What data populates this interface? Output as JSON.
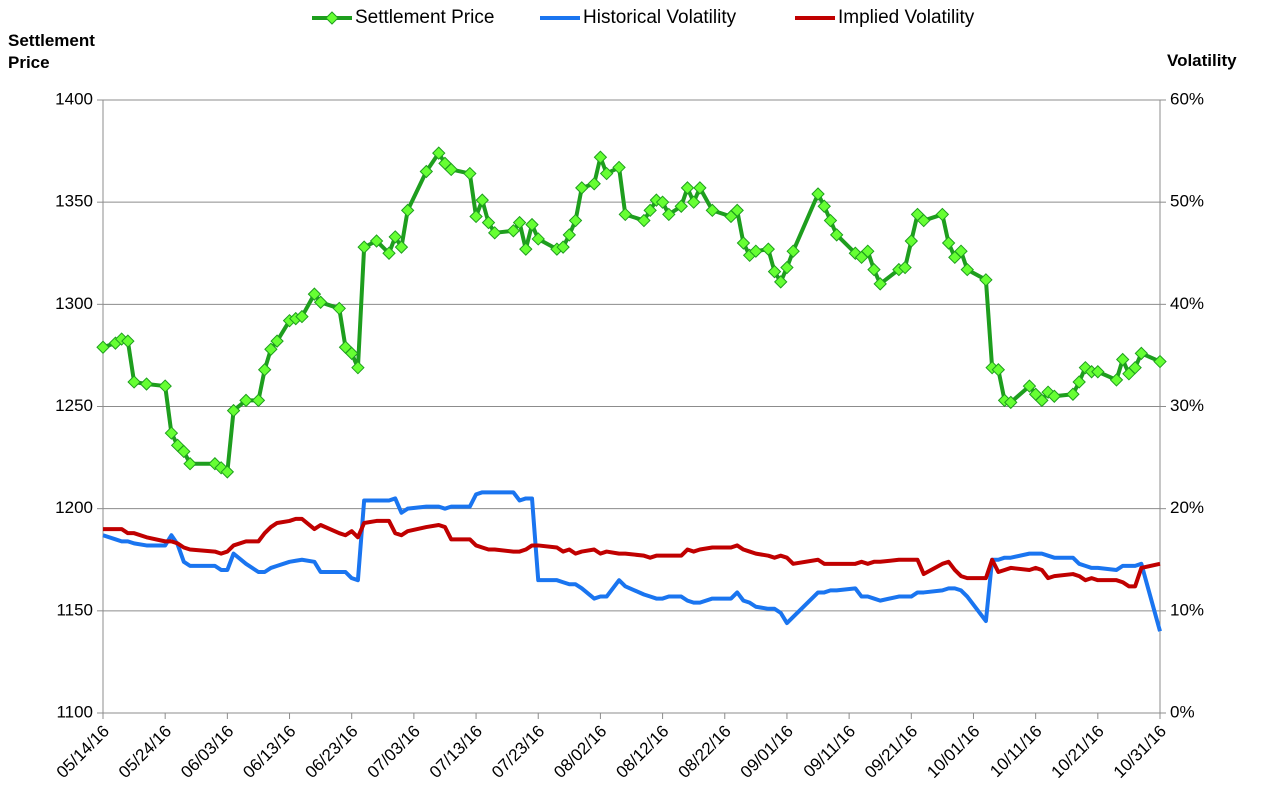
{
  "chart_data": {
    "type": "line",
    "y_label": "Settlement Price",
    "y2_label": "Volatility",
    "legend": "top",
    "grid": true,
    "x": [
      "05/14/16",
      "05/16/16",
      "05/17/16",
      "05/18/16",
      "05/19/16",
      "05/21/16",
      "05/24/16",
      "05/25/16",
      "05/26/16",
      "05/27/16",
      "05/28/16",
      "06/01/16",
      "06/02/16",
      "06/03/16",
      "06/04/16",
      "06/06/16",
      "06/08/16",
      "06/09/16",
      "06/10/16",
      "06/11/16",
      "06/13/16",
      "06/14/16",
      "06/15/16",
      "06/17/16",
      "06/18/16",
      "06/21/16",
      "06/22/16",
      "06/23/16",
      "06/24/16",
      "06/25/16",
      "06/27/16",
      "06/29/16",
      "06/30/16",
      "07/01/16",
      "07/02/16",
      "07/05/16",
      "07/07/16",
      "07/08/16",
      "07/09/16",
      "07/12/16",
      "07/13/16",
      "07/14/16",
      "07/15/16",
      "07/16/16",
      "07/19/16",
      "07/20/16",
      "07/21/16",
      "07/22/16",
      "07/23/16",
      "07/26/16",
      "07/27/16",
      "07/28/16",
      "07/29/16",
      "07/30/16",
      "08/01/16",
      "08/02/16",
      "08/03/16",
      "08/05/16",
      "08/06/16",
      "08/09/16",
      "08/10/16",
      "08/11/16",
      "08/12/16",
      "08/13/16",
      "08/15/16",
      "08/16/16",
      "08/17/16",
      "08/18/16",
      "08/20/16",
      "08/23/16",
      "08/24/16",
      "08/25/16",
      "08/26/16",
      "08/27/16",
      "08/29/16",
      "08/30/16",
      "08/31/16",
      "09/01/16",
      "09/02/16",
      "09/06/16",
      "09/07/16",
      "09/08/16",
      "09/09/16",
      "09/12/16",
      "09/13/16",
      "09/14/16",
      "09/15/16",
      "09/16/16",
      "09/19/16",
      "09/20/16",
      "09/21/16",
      "09/22/16",
      "09/23/16",
      "09/26/16",
      "09/27/16",
      "09/28/16",
      "09/29/16",
      "09/30/16",
      "10/03/16",
      "10/04/16",
      "10/05/16",
      "10/06/16",
      "10/07/16",
      "10/10/16",
      "10/11/16",
      "10/12/16",
      "10/13/16",
      "10/14/16",
      "10/17/16",
      "10/18/16",
      "10/19/16",
      "10/20/16",
      "10/21/16",
      "10/24/16",
      "10/25/16",
      "10/26/16",
      "10/27/16",
      "10/28/16",
      "10/31/16"
    ],
    "series": [
      {
        "name": "Settlement Price",
        "color": "#1e9e1e",
        "marker_color": "#66ff33",
        "values": [
          1279,
          1281,
          1283,
          1282,
          1262,
          1261,
          1260,
          1237,
          1231,
          1228,
          1222,
          1222,
          1220,
          1218,
          1248,
          1253,
          1253,
          1268,
          1278,
          1282,
          1292,
          1293,
          1294,
          1305,
          1301,
          1298,
          1279,
          1276,
          1269,
          1328,
          1331,
          1325,
          1333,
          1328,
          1346,
          1365,
          1374,
          1369,
          1366,
          1364,
          1343,
          1351,
          1340,
          1335,
          1336,
          1340,
          1327,
          1339,
          1332,
          1327,
          1328,
          1334,
          1341,
          1357,
          1359,
          1372,
          1364,
          1367,
          1344,
          1341,
          1346,
          1351,
          1350,
          1344,
          1348,
          1357,
          1350,
          1357,
          1346,
          1343,
          1346,
          1330,
          1324,
          1326,
          1327,
          1316,
          1311,
          1318,
          1326,
          1354,
          1348,
          1341,
          1334,
          1325,
          1323,
          1326,
          1317,
          1310,
          1317,
          1318,
          1331,
          1344,
          1341,
          1344,
          1330,
          1323,
          1326,
          1317,
          1312,
          1269,
          1268,
          1253,
          1252,
          1260,
          1256,
          1253,
          1257,
          1255,
          1256,
          1262,
          1269,
          1267,
          1267,
          1263,
          1273,
          1266,
          1269,
          1276,
          1272
        ]
      },
      {
        "name": "Historical Volatility",
        "color": "#1a75f0",
        "axis": "y2",
        "values": [
          17.4,
          17.0,
          16.8,
          16.8,
          16.6,
          16.4,
          16.4,
          17.4,
          16.5,
          14.8,
          14.4,
          14.4,
          14.0,
          14.0,
          15.6,
          14.6,
          13.8,
          13.8,
          14.2,
          14.4,
          14.8,
          14.9,
          15.0,
          14.8,
          13.8,
          13.8,
          13.8,
          13.2,
          13.0,
          20.8,
          20.8,
          20.8,
          21.0,
          19.6,
          20.0,
          20.2,
          20.2,
          20.0,
          20.2,
          20.2,
          21.4,
          21.6,
          21.6,
          21.6,
          21.6,
          20.8,
          21.0,
          21.0,
          13.0,
          13.0,
          12.8,
          12.6,
          12.6,
          12.2,
          11.2,
          11.4,
          11.4,
          13.0,
          12.4,
          11.6,
          11.4,
          11.2,
          11.2,
          11.4,
          11.4,
          11.0,
          10.8,
          10.8,
          11.2,
          11.2,
          11.8,
          11.0,
          10.8,
          10.4,
          10.2,
          10.2,
          9.8,
          8.8,
          9.4,
          11.8,
          11.8,
          12.0,
          12.0,
          12.2,
          11.4,
          11.4,
          11.2,
          11.0,
          11.4,
          11.4,
          11.4,
          11.8,
          11.8,
          12.0,
          12.2,
          12.2,
          12.0,
          11.4,
          9.0,
          15.0,
          15.0,
          15.2,
          15.2,
          15.6,
          15.6,
          15.6,
          15.4,
          15.2,
          15.2,
          14.6,
          14.4,
          14.2,
          14.2,
          14.0,
          14.4,
          14.4,
          14.4,
          14.6,
          8.0
        ]
      },
      {
        "name": "Implied Volatility",
        "color": "#c00000",
        "axis": "y2",
        "values": [
          18.0,
          18.0,
          18.0,
          17.6,
          17.6,
          17.2,
          16.8,
          16.8,
          16.6,
          16.2,
          16.0,
          15.8,
          15.6,
          15.8,
          16.4,
          16.8,
          16.8,
          17.6,
          18.2,
          18.6,
          18.8,
          19.0,
          19.0,
          18.0,
          18.4,
          17.6,
          17.4,
          17.8,
          17.2,
          18.6,
          18.8,
          18.8,
          17.6,
          17.4,
          17.8,
          18.2,
          18.4,
          18.2,
          17.0,
          17.0,
          16.4,
          16.2,
          16.0,
          16.0,
          15.8,
          15.8,
          16.0,
          16.4,
          16.4,
          16.2,
          15.8,
          16.0,
          15.6,
          15.8,
          16.0,
          15.6,
          15.8,
          15.6,
          15.6,
          15.4,
          15.2,
          15.4,
          15.4,
          15.4,
          15.4,
          16.0,
          15.8,
          16.0,
          16.2,
          16.2,
          16.4,
          16.0,
          15.8,
          15.6,
          15.4,
          15.2,
          15.4,
          15.2,
          14.6,
          15.0,
          14.6,
          14.6,
          14.6,
          14.6,
          14.8,
          14.6,
          14.8,
          14.8,
          15.0,
          15.0,
          15.0,
          15.0,
          13.6,
          14.6,
          14.8,
          14.0,
          13.4,
          13.2,
          13.2,
          15.0,
          13.8,
          14.0,
          14.2,
          14.0,
          14.2,
          14.0,
          13.2,
          13.4,
          13.6,
          13.4,
          13.0,
          13.2,
          13.0,
          13.0,
          12.8,
          12.4,
          12.4,
          14.2,
          14.6
        ]
      }
    ],
    "xlim": [
      "05/14/16",
      "10/31/16"
    ],
    "xticks": [
      "05/14/16",
      "05/24/16",
      "06/03/16",
      "06/13/16",
      "06/23/16",
      "07/03/16",
      "07/13/16",
      "07/23/16",
      "08/02/16",
      "08/12/16",
      "08/22/16",
      "09/01/16",
      "09/11/16",
      "09/21/16",
      "10/01/16",
      "10/11/16",
      "10/21/16",
      "10/31/16"
    ],
    "ylim": [
      1100,
      1400
    ],
    "yticks": [
      1100,
      1150,
      1200,
      1250,
      1300,
      1350,
      1400
    ],
    "y2lim": [
      0,
      60
    ],
    "y2ticks": [
      {
        "value": 0,
        "label": "0%"
      },
      {
        "value": 10,
        "label": "10%"
      },
      {
        "value": 20,
        "label": "20%"
      },
      {
        "value": 30,
        "label": "30%"
      },
      {
        "value": 40,
        "label": "40%"
      },
      {
        "value": 50,
        "label": "50%"
      },
      {
        "value": 60,
        "label": "60%"
      }
    ]
  }
}
